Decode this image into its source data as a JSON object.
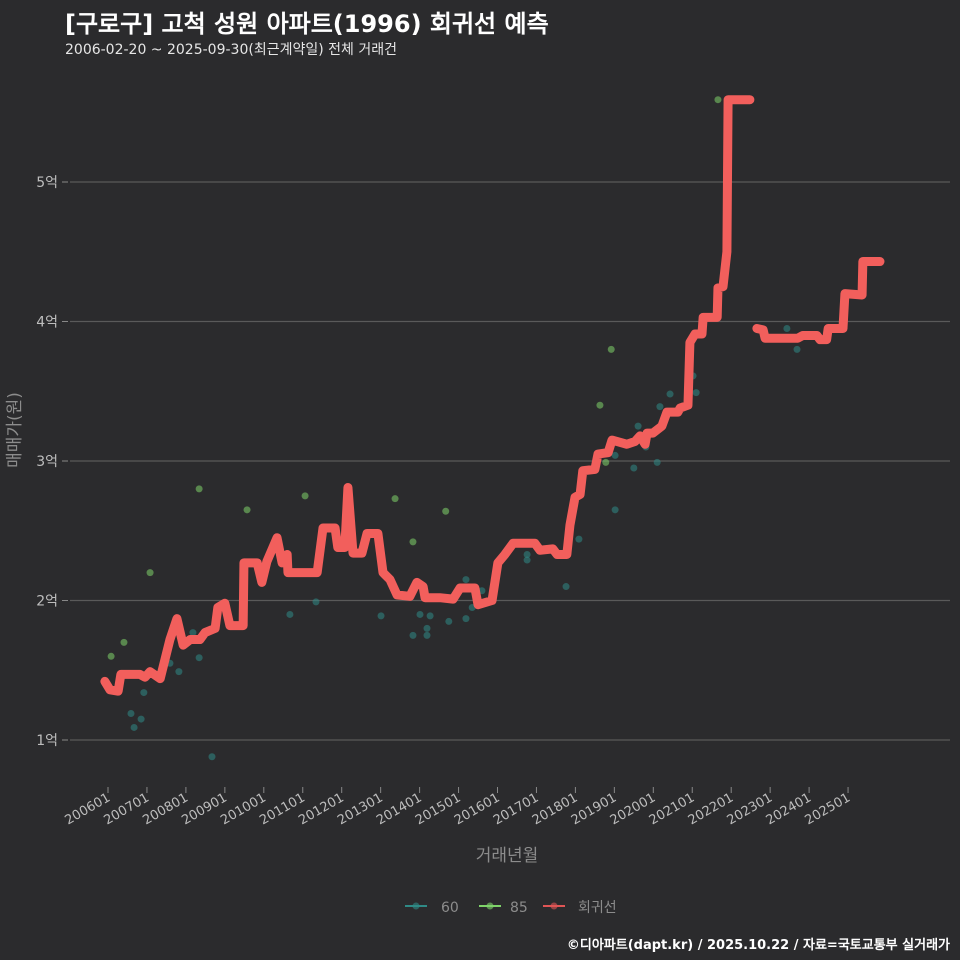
{
  "title": "[구로구] 고척 성원 아파트(1996) 회귀선 예측",
  "subtitle": "2006-02-20 ~ 2025-09-30(최근계약일) 전체 거래건",
  "footer": "©디아파트(dapt.kr) / 2025.10.22 / 자료=국토교통부 실거래가",
  "colors": {
    "background": "#2b2b2d",
    "grid": "#5a5a5a",
    "line": "#f25f5c",
    "s60": "#2f8a86",
    "s85": "#7fd46a"
  },
  "chart_data": {
    "type": "line",
    "title": "[구로구] 고척 성원 아파트(1996) 회귀선 예측",
    "xlabel": "거래년월",
    "ylabel": "매매가(원)",
    "ylim": [
      0.6,
      5.75
    ],
    "xlim": [
      2005.0,
      2027.0
    ],
    "yticks": [
      {
        "v": 1,
        "label": "1억"
      },
      {
        "v": 2,
        "label": "2억"
      },
      {
        "v": 3,
        "label": "3억"
      },
      {
        "v": 4,
        "label": "4억"
      },
      {
        "v": 5,
        "label": "5억"
      }
    ],
    "xticks": [
      "200601",
      "200701",
      "200801",
      "200901",
      "201001",
      "201101",
      "201201",
      "201301",
      "201401",
      "201501",
      "201601",
      "201701",
      "201801",
      "201901",
      "202001",
      "202101",
      "202201",
      "202301",
      "202401",
      "202501"
    ],
    "legend": {
      "position": "bottom",
      "items": [
        {
          "name": "60",
          "color": "#2f8a86"
        },
        {
          "name": "85",
          "color": "#7fd46a"
        },
        {
          "name": "회귀선",
          "color": "#e05555"
        }
      ]
    },
    "series": [
      {
        "name": "60",
        "type": "scatter",
        "points": [
          [
            2006.59,
            1.19
          ],
          [
            2006.85,
            1.15
          ],
          [
            2006.67,
            1.09
          ],
          [
            2006.92,
            1.34
          ],
          [
            2007.59,
            1.55
          ],
          [
            2007.82,
            1.49
          ],
          [
            2008.18,
            1.77
          ],
          [
            2008.34,
            1.59
          ],
          [
            2008.67,
            0.88
          ],
          [
            2010.67,
            1.9
          ],
          [
            2011.34,
            1.99
          ],
          [
            2013.01,
            1.89
          ],
          [
            2013.83,
            1.75
          ],
          [
            2014.01,
            1.9
          ],
          [
            2014.27,
            1.89
          ],
          [
            2014.19,
            1.75
          ],
          [
            2014.19,
            1.8
          ],
          [
            2014.75,
            1.85
          ],
          [
            2015.19,
            1.87
          ],
          [
            2015.19,
            2.15
          ],
          [
            2015.35,
            1.95
          ],
          [
            2015.6,
            2.07
          ],
          [
            2016.76,
            2.33
          ],
          [
            2016.76,
            2.29
          ],
          [
            2017.76,
            2.1
          ],
          [
            2018.09,
            2.44
          ],
          [
            2019.02,
            2.65
          ],
          [
            2019.5,
            2.95
          ],
          [
            2019.02,
            3.04
          ],
          [
            2020.1,
            2.99
          ],
          [
            2019.81,
            3.1
          ],
          [
            2019.61,
            3.25
          ],
          [
            2020.17,
            3.39
          ],
          [
            2020.43,
            3.48
          ],
          [
            2021.1,
            3.49
          ],
          [
            2021.02,
            3.61
          ],
          [
            2023.43,
            3.95
          ],
          [
            2023.69,
            3.8
          ]
        ]
      },
      {
        "name": "85",
        "type": "scatter",
        "points": [
          [
            2006.08,
            1.6
          ],
          [
            2006.41,
            1.7
          ],
          [
            2007.08,
            2.2
          ],
          [
            2008.34,
            2.8
          ],
          [
            2009.57,
            2.65
          ],
          [
            2011.06,
            2.75
          ],
          [
            2013.37,
            2.73
          ],
          [
            2013.83,
            2.42
          ],
          [
            2014.67,
            2.64
          ],
          [
            2018.63,
            3.4
          ],
          [
            2018.92,
            3.8
          ],
          [
            2018.78,
            2.99
          ],
          [
            2021.66,
            5.59
          ]
        ]
      },
      {
        "name": "회귀선",
        "type": "line",
        "segments": [
          [
            [
              2005.92,
              1.42
            ],
            [
              2006.05,
              1.36
            ],
            [
              2006.26,
              1.35
            ],
            [
              2006.33,
              1.47
            ],
            [
              2006.82,
              1.47
            ],
            [
              2006.95,
              1.45
            ],
            [
              2007.08,
              1.49
            ],
            [
              2007.34,
              1.44
            ],
            [
              2007.59,
              1.72
            ],
            [
              2007.77,
              1.87
            ],
            [
              2007.93,
              1.68
            ],
            [
              2008.11,
              1.72
            ],
            [
              2008.36,
              1.72
            ],
            [
              2008.49,
              1.77
            ],
            [
              2008.75,
              1.8
            ],
            [
              2008.82,
              1.95
            ],
            [
              2009.0,
              1.98
            ],
            [
              2009.13,
              1.82
            ],
            [
              2009.47,
              1.82
            ],
            [
              2009.49,
              2.27
            ],
            [
              2009.83,
              2.27
            ],
            [
              2009.95,
              2.13
            ],
            [
              2010.08,
              2.28
            ],
            [
              2010.34,
              2.45
            ],
            [
              2010.47,
              2.27
            ],
            [
              2010.6,
              2.33
            ],
            [
              2010.62,
              2.2
            ],
            [
              2011.37,
              2.2
            ],
            [
              2011.52,
              2.52
            ],
            [
              2011.83,
              2.52
            ],
            [
              2011.9,
              2.38
            ],
            [
              2012.08,
              2.38
            ],
            [
              2012.16,
              2.81
            ],
            [
              2012.29,
              2.34
            ],
            [
              2012.52,
              2.34
            ],
            [
              2012.65,
              2.48
            ],
            [
              2012.93,
              2.48
            ],
            [
              2013.06,
              2.2
            ],
            [
              2013.24,
              2.15
            ],
            [
              2013.42,
              2.04
            ],
            [
              2013.75,
              2.03
            ],
            [
              2013.93,
              2.13
            ],
            [
              2014.09,
              2.1
            ],
            [
              2014.14,
              2.02
            ],
            [
              2014.52,
              2.02
            ],
            [
              2014.86,
              2.01
            ],
            [
              2015.04,
              2.09
            ],
            [
              2015.42,
              2.09
            ],
            [
              2015.5,
              1.97
            ],
            [
              2015.86,
              2.0
            ],
            [
              2016.01,
              2.27
            ],
            [
              2016.19,
              2.33
            ],
            [
              2016.4,
              2.41
            ],
            [
              2016.96,
              2.41
            ],
            [
              2017.09,
              2.36
            ],
            [
              2017.42,
              2.37
            ],
            [
              2017.53,
              2.33
            ],
            [
              2017.78,
              2.33
            ],
            [
              2017.86,
              2.54
            ],
            [
              2017.99,
              2.74
            ],
            [
              2018.12,
              2.76
            ],
            [
              2018.19,
              2.93
            ],
            [
              2018.5,
              2.94
            ],
            [
              2018.58,
              3.05
            ],
            [
              2018.84,
              3.06
            ],
            [
              2018.94,
              3.15
            ],
            [
              2019.32,
              3.12
            ],
            [
              2019.53,
              3.14
            ],
            [
              2019.66,
              3.18
            ],
            [
              2019.79,
              3.12
            ],
            [
              2019.84,
              3.2
            ],
            [
              2019.99,
              3.2
            ],
            [
              2020.22,
              3.25
            ],
            [
              2020.35,
              3.35
            ],
            [
              2020.63,
              3.35
            ],
            [
              2020.69,
              3.38
            ],
            [
              2020.89,
              3.4
            ],
            [
              2020.94,
              3.85
            ],
            [
              2021.07,
              3.91
            ],
            [
              2021.25,
              3.91
            ],
            [
              2021.28,
              4.03
            ],
            [
              2021.64,
              4.03
            ],
            [
              2021.66,
              4.24
            ],
            [
              2021.79,
              4.25
            ],
            [
              2021.89,
              4.5
            ],
            [
              2021.92,
              5.59
            ],
            [
              2022.48,
              5.59
            ]
          ],
          [
            [
              2022.66,
              3.95
            ],
            [
              2022.82,
              3.94
            ],
            [
              2022.87,
              3.88
            ],
            [
              2023.71,
              3.88
            ],
            [
              2023.84,
              3.9
            ],
            [
              2024.2,
              3.9
            ],
            [
              2024.28,
              3.87
            ],
            [
              2024.45,
              3.87
            ],
            [
              2024.49,
              3.95
            ],
            [
              2024.87,
              3.95
            ],
            [
              2024.92,
              4.2
            ],
            [
              2025.36,
              4.19
            ],
            [
              2025.38,
              4.43
            ],
            [
              2025.82,
              4.43
            ]
          ]
        ]
      }
    ]
  }
}
